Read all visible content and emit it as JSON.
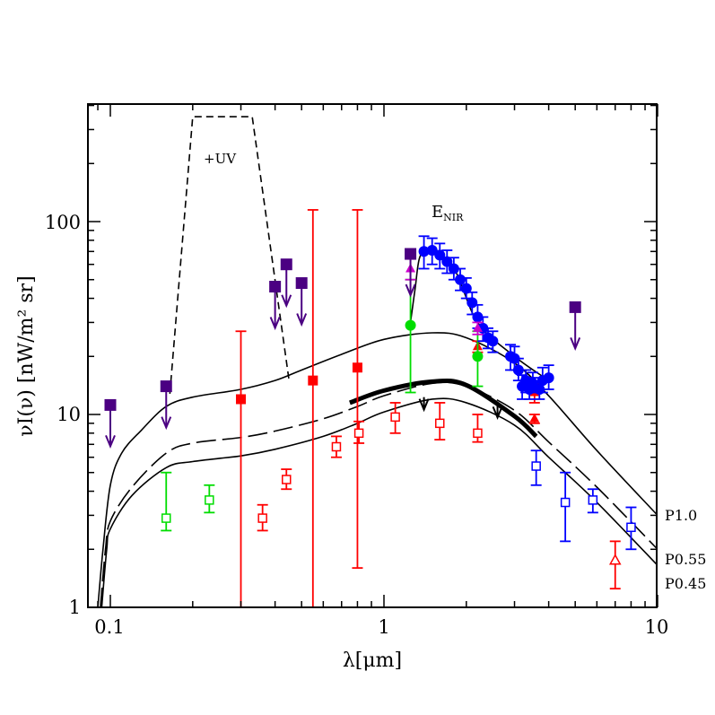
{
  "chart_data": {
    "type": "scatter",
    "xlabel": "λ[μm]",
    "ylabel": "νI(ν)  [nW/m² sr]",
    "xscale": "log",
    "yscale": "log",
    "xlim": [
      0.085,
      10
    ],
    "ylim": [
      1,
      400
    ],
    "x_tick_labels": [
      "0.1",
      "1",
      "10"
    ],
    "y_tick_labels": [
      "1",
      "10",
      "100"
    ],
    "annotations": {
      "uv": "+UV",
      "enir_main": "E",
      "enir_sub": "NIR"
    },
    "curve_labels": [
      "P1.0",
      "P0.55",
      "P0.45"
    ],
    "colors": {
      "red": "#ff0000",
      "blue": "#0000ff",
      "green": "#00dd00",
      "purple": "#4b0082",
      "magenta": "#cc00cc",
      "black": "#000000"
    },
    "curves": [
      {
        "label": "P1.0",
        "style": "solid",
        "color": "#000000",
        "points": [
          [
            0.09,
            1
          ],
          [
            0.094,
            2
          ],
          [
            0.1,
            4.3
          ],
          [
            0.11,
            6.3
          ],
          [
            0.13,
            8.3
          ],
          [
            0.16,
            11
          ],
          [
            0.2,
            12.3
          ],
          [
            0.3,
            13.5
          ],
          [
            0.4,
            15
          ],
          [
            0.5,
            17
          ],
          [
            0.7,
            20.5
          ],
          [
            1.0,
            24.5
          ],
          [
            1.5,
            26.5
          ],
          [
            2.0,
            25
          ],
          [
            3.0,
            18.5
          ],
          [
            4.0,
            12.5
          ],
          [
            6.0,
            6.5
          ],
          [
            10.0,
            3
          ]
        ]
      },
      {
        "label": "P0.55",
        "style": "dashed",
        "color": "#000000",
        "points": [
          [
            0.092,
            1
          ],
          [
            0.096,
            2
          ],
          [
            0.1,
            2.8
          ],
          [
            0.12,
            4.2
          ],
          [
            0.16,
            6.3
          ],
          [
            0.2,
            7.1
          ],
          [
            0.3,
            7.6
          ],
          [
            0.4,
            8.2
          ],
          [
            0.6,
            9.5
          ],
          [
            0.8,
            11
          ],
          [
            1.0,
            12.5
          ],
          [
            1.5,
            14.5
          ],
          [
            2.0,
            14
          ],
          [
            3.0,
            10.5
          ],
          [
            4.0,
            7.2
          ],
          [
            6.0,
            4.2
          ],
          [
            10.0,
            2.0
          ]
        ]
      },
      {
        "label": "P0.45",
        "style": "solid",
        "color": "#000000",
        "points": [
          [
            0.093,
            1
          ],
          [
            0.097,
            2
          ],
          [
            0.1,
            2.55
          ],
          [
            0.12,
            3.8
          ],
          [
            0.16,
            5.3
          ],
          [
            0.2,
            5.7
          ],
          [
            0.3,
            6.1
          ],
          [
            0.4,
            6.6
          ],
          [
            0.6,
            7.7
          ],
          [
            0.8,
            9
          ],
          [
            1.0,
            10.3
          ],
          [
            1.5,
            12
          ],
          [
            2.0,
            11.5
          ],
          [
            3.0,
            8.8
          ],
          [
            4.0,
            6.0
          ],
          [
            6.0,
            3.5
          ],
          [
            10.0,
            1.65
          ]
        ]
      },
      {
        "label": "+UV",
        "style": "dashed",
        "color": "#000000",
        "points": [
          [
            0.165,
            12.8
          ],
          [
            0.2,
            350
          ],
          [
            0.33,
            350
          ],
          [
            0.45,
            15
          ]
        ]
      },
      {
        "label": "E_NIR",
        "style": "solid",
        "color": "#000000",
        "points": [
          [
            1.25,
            30
          ],
          [
            1.3,
            45
          ],
          [
            1.35,
            65
          ],
          [
            1.45,
            70
          ],
          [
            1.8,
            57
          ],
          [
            2.2,
            30
          ],
          [
            3.0,
            20
          ],
          [
            4.0,
            15
          ]
        ]
      },
      {
        "label": "thick",
        "style": "thick",
        "color": "#000000",
        "points": [
          [
            0.75,
            11.5
          ],
          [
            1.0,
            13.3
          ],
          [
            1.5,
            14.8
          ],
          [
            2.0,
            14.2
          ],
          [
            3.0,
            9.8
          ],
          [
            3.6,
            7.7
          ]
        ]
      }
    ],
    "upper_limit_arrows": [
      {
        "x": 1.4,
        "y": 12.3,
        "color": "#000000"
      },
      {
        "x": 2.6,
        "y": 11.2,
        "color": "#000000"
      }
    ],
    "series": [
      {
        "marker": "filled-square",
        "color": "#ff0000",
        "points": [
          {
            "x": 0.3,
            "y": 12,
            "lo": 1,
            "hi": 27
          },
          {
            "x": 0.55,
            "y": 15,
            "lo": 1,
            "hi": 115
          },
          {
            "x": 0.8,
            "y": 17.5,
            "lo": 1.6,
            "hi": 115
          }
        ]
      },
      {
        "marker": "open-square",
        "color": "#ff0000",
        "points": [
          {
            "x": 0.36,
            "y": 2.9,
            "lo": 2.5,
            "hi": 3.4
          },
          {
            "x": 0.44,
            "y": 4.6,
            "lo": 4.1,
            "hi": 5.2
          },
          {
            "x": 0.67,
            "y": 6.8,
            "lo": 6.0,
            "hi": 7.7
          },
          {
            "x": 0.81,
            "y": 8.0,
            "lo": 7.1,
            "hi": 9.2
          },
          {
            "x": 1.1,
            "y": 9.7,
            "lo": 8.0,
            "hi": 11.5
          },
          {
            "x": 1.6,
            "y": 9.0,
            "lo": 7.4,
            "hi": 11.5
          },
          {
            "x": 2.2,
            "y": 8.0,
            "lo": 7.2,
            "hi": 10.0
          }
        ]
      },
      {
        "marker": "open-triangle",
        "color": "#ff0000",
        "points": [
          {
            "x": 7.0,
            "y": 1.75,
            "lo": 1.25,
            "hi": 2.2
          }
        ]
      },
      {
        "marker": "filled-triangle",
        "color": "#ff0000",
        "points": [
          {
            "x": 2.2,
            "y": 22.5,
            "lo": 21,
            "hi": 24
          },
          {
            "x": 3.55,
            "y": 13,
            "lo": 11.5,
            "hi": 14.5
          },
          {
            "x": 3.55,
            "y": 9.5,
            "lo": 9,
            "hi": 10
          }
        ]
      },
      {
        "marker": "open-square",
        "color": "#00dd00",
        "points": [
          {
            "x": 0.16,
            "y": 2.9,
            "lo": 2.5,
            "hi": 5.0
          },
          {
            "x": 0.23,
            "y": 3.6,
            "lo": 3.1,
            "hi": 4.3
          }
        ]
      },
      {
        "marker": "filled-circle",
        "color": "#00dd00",
        "points": [
          {
            "x": 1.25,
            "y": 29,
            "lo": 13,
            "hi": 50
          },
          {
            "x": 2.2,
            "y": 20,
            "lo": 14,
            "hi": 27
          }
        ]
      },
      {
        "marker": "filled-circle",
        "color": "#0000ff",
        "points": [
          {
            "x": 1.4,
            "y": 70,
            "lo": 57,
            "hi": 84
          },
          {
            "x": 1.5,
            "y": 71,
            "lo": 60,
            "hi": 82
          },
          {
            "x": 1.6,
            "y": 67,
            "lo": 57,
            "hi": 77
          },
          {
            "x": 1.7,
            "y": 62,
            "lo": 54,
            "hi": 71
          },
          {
            "x": 1.8,
            "y": 57,
            "lo": 50,
            "hi": 65
          },
          {
            "x": 1.9,
            "y": 50,
            "lo": 44,
            "hi": 57
          },
          {
            "x": 2.0,
            "y": 45,
            "lo": 40,
            "hi": 51
          },
          {
            "x": 2.1,
            "y": 38,
            "lo": 33,
            "hi": 43
          },
          {
            "x": 2.2,
            "y": 32,
            "lo": 28,
            "hi": 37
          },
          {
            "x": 2.3,
            "y": 28,
            "lo": 24,
            "hi": 32
          },
          {
            "x": 2.4,
            "y": 25,
            "lo": 22,
            "hi": 28
          },
          {
            "x": 2.5,
            "y": 24,
            "lo": 21,
            "hi": 27
          },
          {
            "x": 2.9,
            "y": 20,
            "lo": 17,
            "hi": 23
          },
          {
            "x": 3.0,
            "y": 19.5,
            "lo": 17,
            "hi": 22.5
          },
          {
            "x": 3.1,
            "y": 17,
            "lo": 15,
            "hi": 19.5
          },
          {
            "x": 3.2,
            "y": 14,
            "lo": 12,
            "hi": 16
          },
          {
            "x": 3.3,
            "y": 15,
            "lo": 13,
            "hi": 17
          },
          {
            "x": 3.4,
            "y": 13.5,
            "lo": 12,
            "hi": 15.5
          },
          {
            "x": 3.5,
            "y": 14.5,
            "lo": 13,
            "hi": 16.5
          },
          {
            "x": 3.7,
            "y": 13.5,
            "lo": 12,
            "hi": 15.5
          },
          {
            "x": 3.8,
            "y": 15,
            "lo": 13,
            "hi": 17.5
          },
          {
            "x": 4.0,
            "y": 15.5,
            "lo": 13.5,
            "hi": 18
          }
        ]
      },
      {
        "marker": "open-square",
        "color": "#0000ff",
        "points": [
          {
            "x": 3.6,
            "y": 5.4,
            "lo": 4.3,
            "hi": 6.5
          },
          {
            "x": 4.6,
            "y": 3.5,
            "lo": 2.2,
            "hi": 5.0
          },
          {
            "x": 5.8,
            "y": 3.6,
            "lo": 3.1,
            "hi": 4.1
          },
          {
            "x": 8.0,
            "y": 2.6,
            "lo": 2.0,
            "hi": 3.3
          }
        ]
      },
      {
        "marker": "filled-triangle",
        "color": "#cc00cc",
        "points": [
          {
            "x": 1.25,
            "y": 57,
            "lo": 50,
            "hi": 64
          },
          {
            "x": 2.2,
            "y": 28,
            "lo": 26,
            "hi": 30
          }
        ]
      },
      {
        "marker": "filled-square-limit",
        "color": "#4b0082",
        "points": [
          {
            "x": 0.1,
            "y": 11.2
          },
          {
            "x": 0.16,
            "y": 14
          },
          {
            "x": 0.4,
            "y": 46
          },
          {
            "x": 0.44,
            "y": 60
          },
          {
            "x": 0.5,
            "y": 48
          },
          {
            "x": 1.25,
            "y": 68
          },
          {
            "x": 5.0,
            "y": 36
          }
        ]
      }
    ]
  }
}
